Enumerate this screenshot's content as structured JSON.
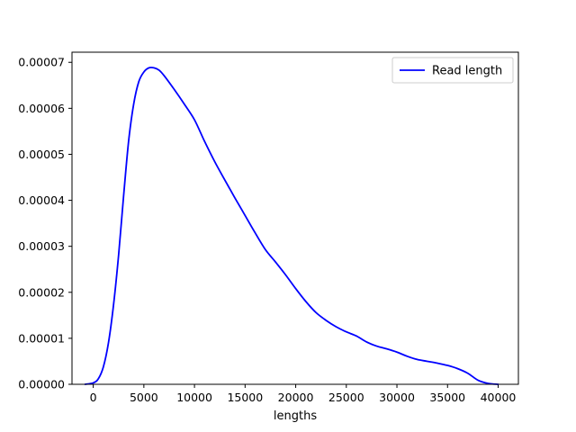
{
  "chart_data": {
    "type": "line",
    "title": "",
    "xlabel": "lengths",
    "ylabel": "",
    "xlim": [
      -2100,
      42000
    ],
    "ylim": [
      0,
      7.22e-05
    ],
    "x_ticks": [
      0,
      5000,
      10000,
      15000,
      20000,
      25000,
      30000,
      35000,
      40000
    ],
    "x_tick_labels": [
      "0",
      "5000",
      "10000",
      "15000",
      "20000",
      "25000",
      "30000",
      "35000",
      "40000"
    ],
    "y_ticks": [
      0,
      1e-05,
      2e-05,
      3e-05,
      4e-05,
      5e-05,
      6e-05,
      7e-05
    ],
    "y_tick_labels": [
      "0.00000",
      "0.00001",
      "0.00002",
      "0.00003",
      "0.00004",
      "0.00005",
      "0.00006",
      "0.00007"
    ],
    "grid": false,
    "legend": {
      "position": "top-right",
      "entries": [
        "Read length"
      ]
    },
    "series": [
      {
        "name": "Read length",
        "color": "#0000ff",
        "x": [
          -800,
          0,
          500,
          1000,
          1500,
          2000,
          2500,
          3000,
          3500,
          4000,
          4500,
          5000,
          5500,
          6000,
          6500,
          7000,
          8000,
          9000,
          10000,
          11000,
          12000,
          13000,
          14000,
          15000,
          16000,
          17000,
          18000,
          19000,
          20000,
          21000,
          22000,
          23000,
          24000,
          25000,
          26000,
          27000,
          28000,
          29000,
          30000,
          31000,
          32000,
          33000,
          34000,
          35000,
          36000,
          37000,
          38000,
          39000,
          40000
        ],
        "y": [
          0,
          3e-07,
          1.2e-06,
          3.8e-06,
          9e-06,
          1.72e-05,
          2.8e-05,
          4.1e-05,
          5.3e-05,
          6.1e-05,
          6.58e-05,
          6.79e-05,
          6.88e-05,
          6.88e-05,
          6.83e-05,
          6.71e-05,
          6.41e-05,
          6.09e-05,
          5.75e-05,
          5.28e-05,
          4.84e-05,
          4.44e-05,
          4.05e-05,
          3.67e-05,
          3.29e-05,
          2.93e-05,
          2.66e-05,
          2.38e-05,
          2.08e-05,
          1.8e-05,
          1.56e-05,
          1.39e-05,
          1.25e-05,
          1.14e-05,
          1.05e-05,
          9.2e-06,
          8.3e-06,
          7.7e-06,
          7e-06,
          6.1e-06,
          5.4e-06,
          5e-06,
          4.6e-06,
          4.1e-06,
          3.4e-06,
          2.4e-06,
          9e-07,
          2e-07,
          0
        ]
      }
    ]
  }
}
